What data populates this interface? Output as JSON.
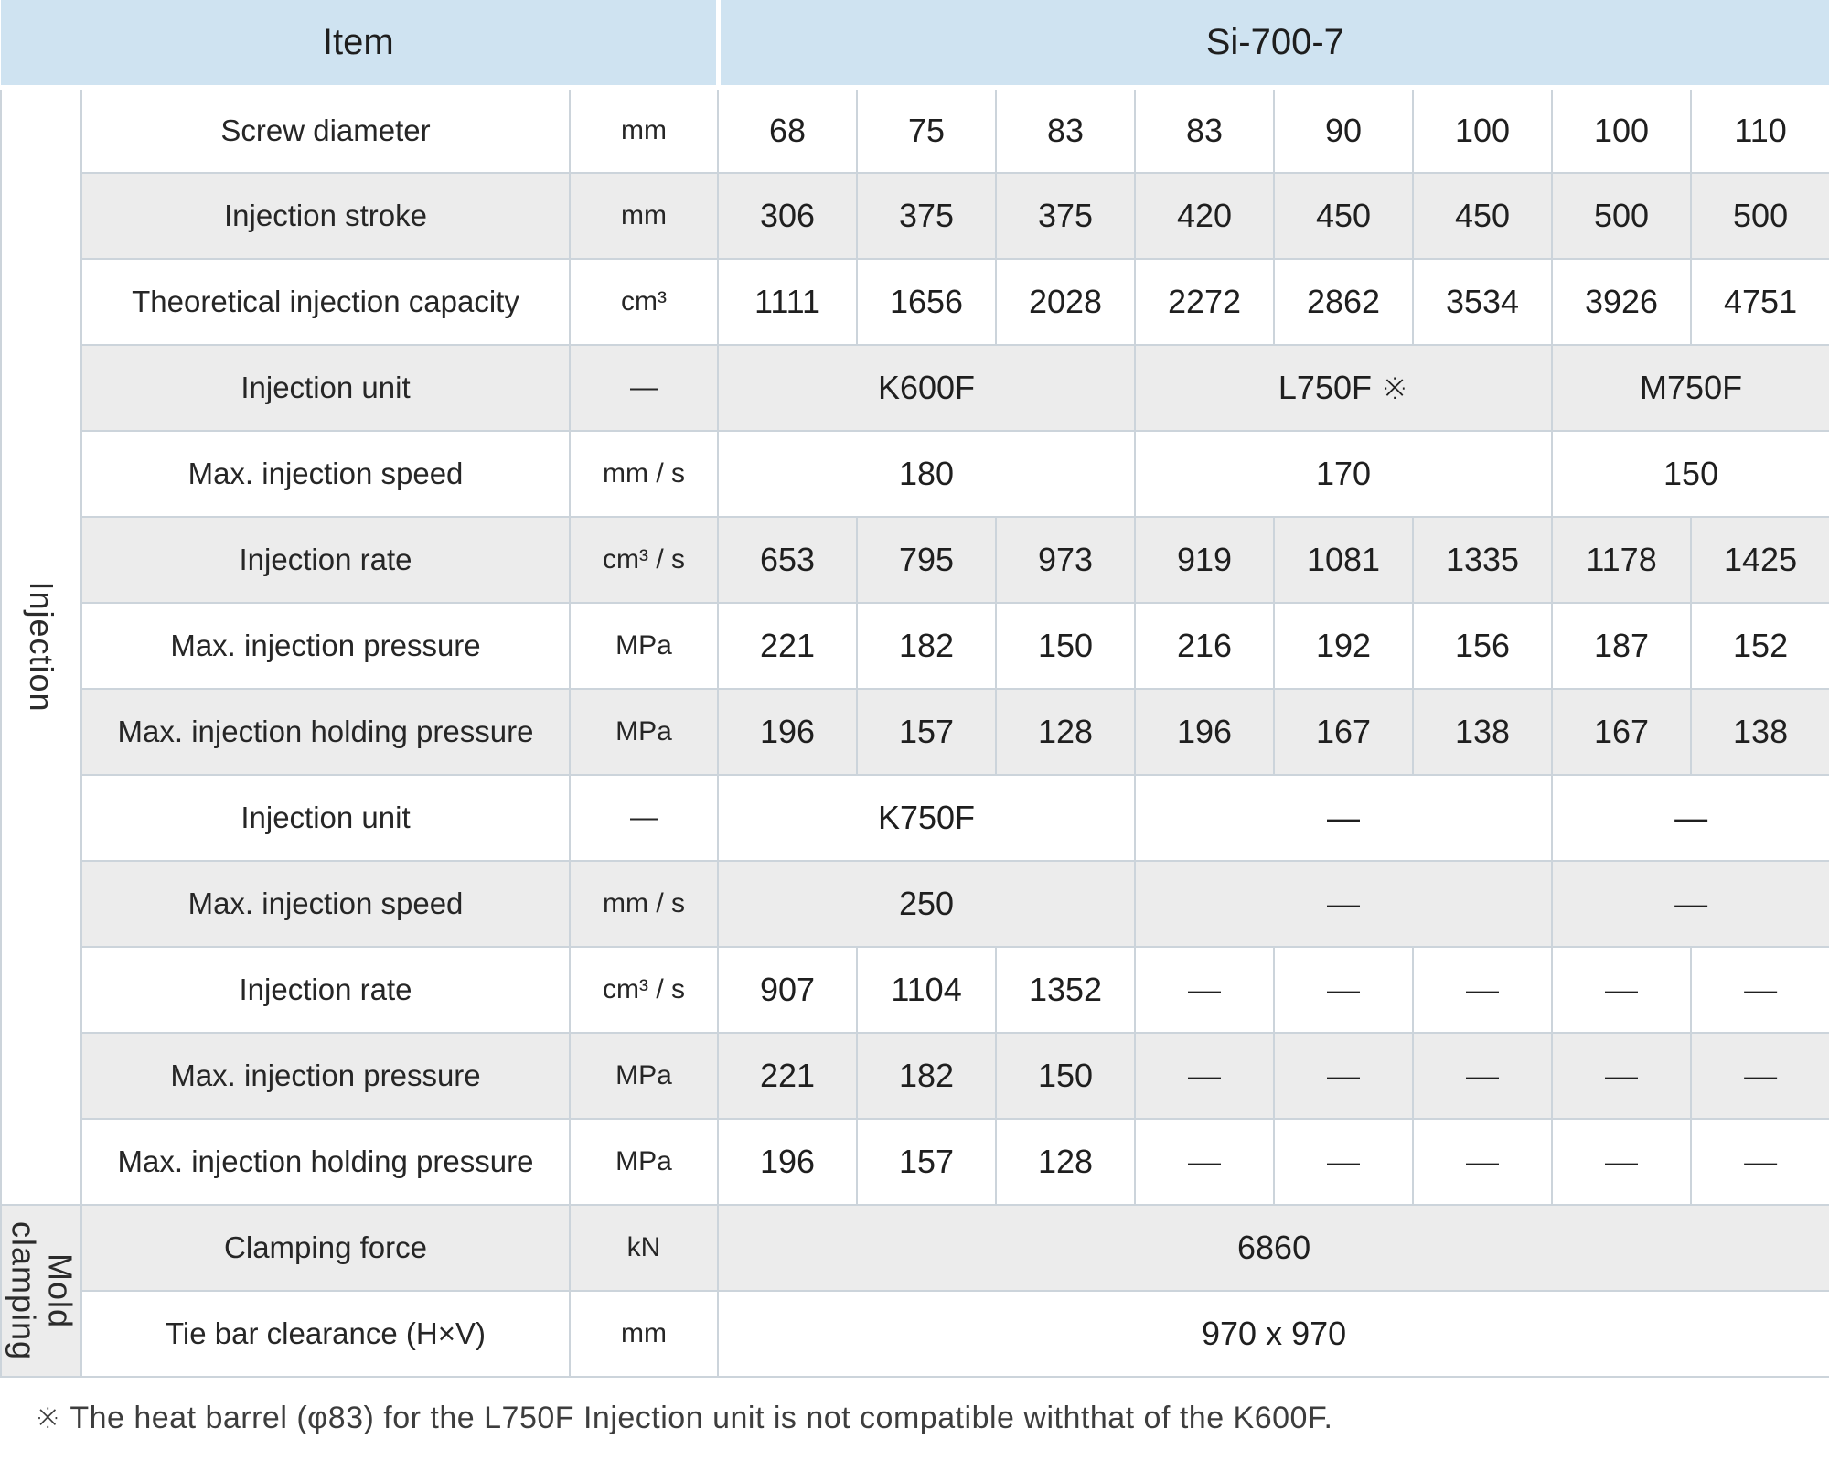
{
  "table": {
    "header": {
      "item": "Item",
      "model": "Si-700-7"
    },
    "groups": {
      "injection": "Injection",
      "mold_clamping": "Mold clamping"
    },
    "rows": [
      {
        "label": "Screw diameter",
        "unit": "mm",
        "cells": [
          "68",
          "75",
          "83",
          "83",
          "90",
          "100",
          "100",
          "110"
        ]
      },
      {
        "label": "Injection stroke",
        "unit": "mm",
        "cells": [
          "306",
          "375",
          "375",
          "420",
          "450",
          "450",
          "500",
          "500"
        ]
      },
      {
        "label": "Theoretical injection capacity",
        "unit": "cm³",
        "cells": [
          "1111",
          "1656",
          "2028",
          "2272",
          "2862",
          "3534",
          "3926",
          "4751"
        ]
      },
      {
        "label": "Injection unit",
        "unit": "—",
        "cells": [
          "K600F",
          "L750F ※",
          "M750F"
        ]
      },
      {
        "label": "Max. injection speed",
        "unit": "mm / s",
        "cells": [
          "180",
          "170",
          "150"
        ]
      },
      {
        "label": "Injection rate",
        "unit": "cm³ / s",
        "cells": [
          "653",
          "795",
          "973",
          "919",
          "1081",
          "1335",
          "1178",
          "1425"
        ]
      },
      {
        "label": "Max. injection pressure",
        "unit": "MPa",
        "cells": [
          "221",
          "182",
          "150",
          "216",
          "192",
          "156",
          "187",
          "152"
        ]
      },
      {
        "label": "Max. injection holding pressure",
        "unit": "MPa",
        "cells": [
          "196",
          "157",
          "128",
          "196",
          "167",
          "138",
          "167",
          "138"
        ]
      },
      {
        "label": "Injection unit",
        "unit": "—",
        "cells": [
          "K750F",
          "—",
          "—"
        ]
      },
      {
        "label": "Max. injection speed",
        "unit": "mm / s",
        "cells": [
          "250",
          "—",
          "—"
        ]
      },
      {
        "label": "Injection rate",
        "unit": "cm³ / s",
        "cells": [
          "907",
          "1104",
          "1352",
          "—",
          "—",
          "—",
          "—",
          "—"
        ]
      },
      {
        "label": "Max. injection pressure",
        "unit": "MPa",
        "cells": [
          "221",
          "182",
          "150",
          "—",
          "—",
          "—",
          "—",
          "—"
        ]
      },
      {
        "label": "Max. injection holding pressure",
        "unit": "MPa",
        "cells": [
          "196",
          "157",
          "128",
          "—",
          "—",
          "—",
          "—",
          "—"
        ]
      },
      {
        "label": "Clamping force",
        "unit": "kN",
        "cells": [
          "6860"
        ]
      },
      {
        "label": "Tie bar clearance (H×V)",
        "unit": "mm",
        "cells": [
          "970 x 970"
        ]
      }
    ],
    "footnote": "※ The heat barrel (φ83) for the L750F Injection unit is not compatible withthat of the K600F."
  },
  "colors": {
    "header_bg": "#cfe3f1",
    "row_alt_bg": "#ececec",
    "row_bg": "#ffffff",
    "border": "#ccd4db",
    "text": "#232323"
  }
}
